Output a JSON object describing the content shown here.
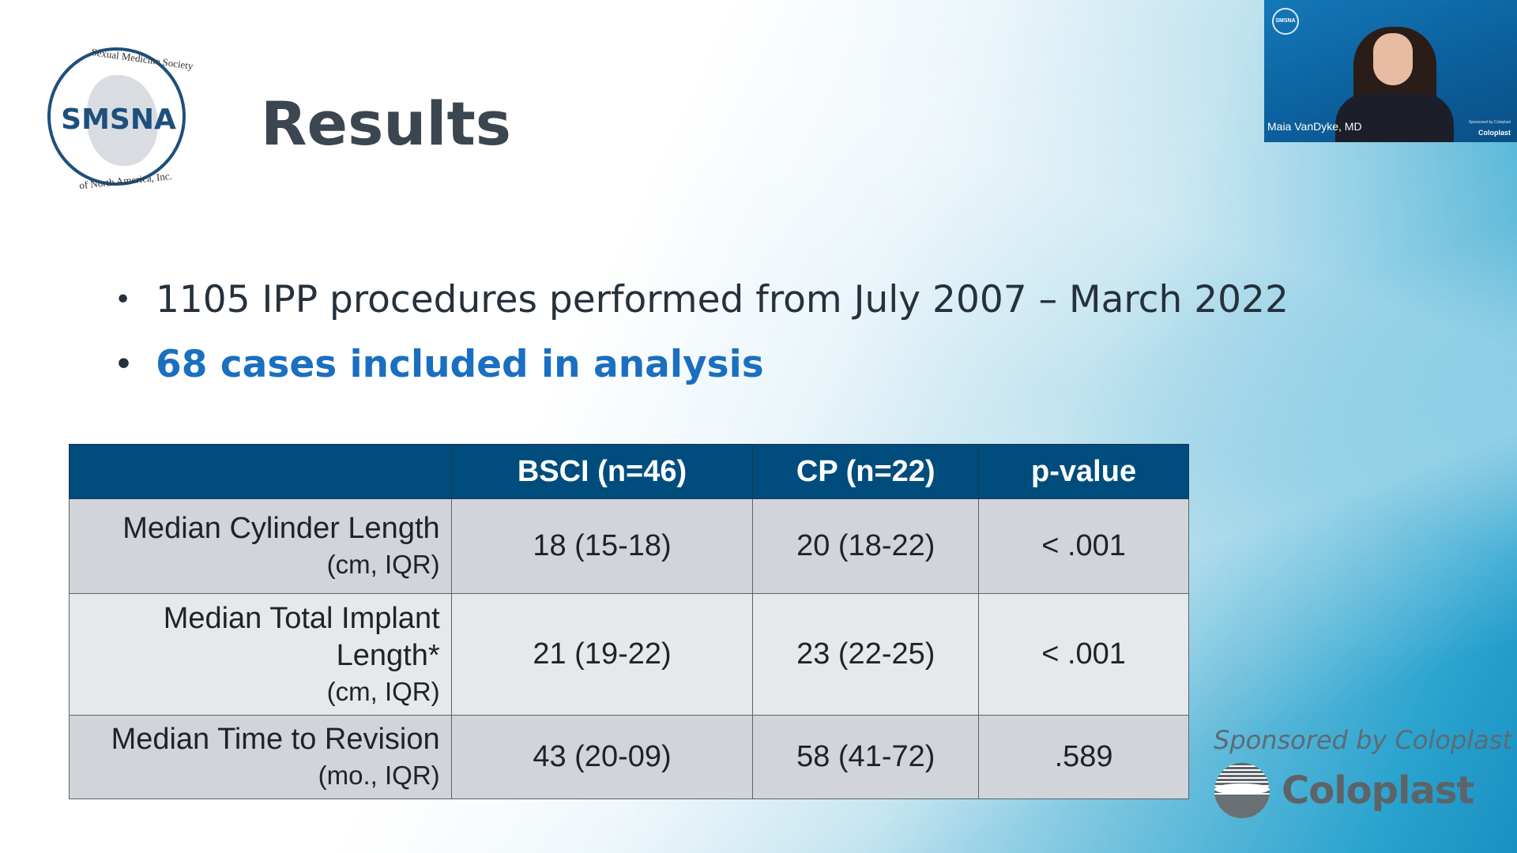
{
  "slide": {
    "title": "Results",
    "logo": {
      "abbr": "SMSNA",
      "arc_top": "Sexual Medicine Society",
      "arc_bottom": "of North America, Inc."
    },
    "bullets": [
      {
        "text": "1105 IPP procedures performed from July 2007 – March 2022"
      },
      {
        "text": "68 cases included in analysis"
      }
    ],
    "bullet_symbol": "•",
    "table": {
      "headers": [
        "",
        "BSCI (n=46)",
        "CP (n=22)",
        "p-value"
      ],
      "rows": [
        {
          "label_lines": [
            "Median Cylinder Length"
          ],
          "unit": "(cm, IQR)",
          "bsci": "18 (15-18)",
          "cp": "20 (18-22)",
          "p": "< .001"
        },
        {
          "label_lines": [
            "Median Total Implant",
            "Length*"
          ],
          "unit": "(cm, IQR)",
          "bsci": "21 (19-22)",
          "cp": "23 (22-25)",
          "p": "< .001"
        },
        {
          "label_lines": [
            "Median Time to Revision"
          ],
          "unit": "(mo., IQR)",
          "bsci": "43 (20-09)",
          "cp": "58 (41-72)",
          "p": ".589"
        }
      ]
    },
    "sponsor": {
      "text": "Sponsored by Coloplast",
      "brand": "Coloplast"
    }
  },
  "video": {
    "speaker_name": "Maia VanDyke, MD",
    "wall_logo": "SMSNA",
    "overlay_sponsor_small": "Sponsored by Coloplast",
    "overlay_brand": "Coloplast"
  },
  "colors": {
    "title": "#3c4651",
    "highlight": "#1a6fc0",
    "table_header": "#004d7d",
    "row_dark": "#d1d4d8",
    "row_light": "#e6e8eb"
  }
}
